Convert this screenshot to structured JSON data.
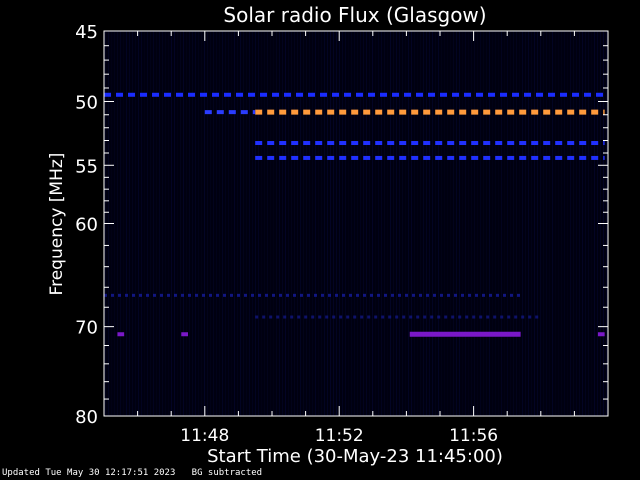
{
  "chart_data": {
    "type": "heatmap",
    "title": "Solar radio Flux (Glasgow)",
    "xlabel": "Start Time (30-May-23 11:45:00)",
    "ylabel": "Frequency [MHz]",
    "x_range_minutes": [
      0,
      15
    ],
    "x_ticks": [
      {
        "minutes": 3,
        "label": "11:48"
      },
      {
        "minutes": 7,
        "label": "11:52"
      },
      {
        "minutes": 11,
        "label": "11:56"
      }
    ],
    "y_range_mhz": [
      45,
      80
    ],
    "y_scale": "log",
    "y_ticks": [
      {
        "mhz": 45,
        "label": "45"
      },
      {
        "mhz": 50,
        "label": "50"
      },
      {
        "mhz": 55,
        "label": "55"
      },
      {
        "mhz": 60,
        "label": "60"
      },
      {
        "mhz": 70,
        "label": "70"
      },
      {
        "mhz": 80,
        "label": "80"
      }
    ],
    "features": [
      {
        "name": "band-50mhz-interference",
        "mhz": 49.5,
        "x_start": 0.0,
        "x_end": 14.9,
        "intensity": "medium",
        "color": "#1a2cff",
        "style": "dashed"
      },
      {
        "name": "band-51mhz-strong",
        "mhz": 50.8,
        "x_start": 4.5,
        "x_end": 14.9,
        "intensity": "high",
        "color": "#ff9a3c",
        "style": "dashed"
      },
      {
        "name": "band-51mhz-early",
        "mhz": 50.8,
        "x_start": 3.0,
        "x_end": 4.5,
        "intensity": "medium",
        "color": "#2a3cff",
        "style": "dashed"
      },
      {
        "name": "band-53mhz",
        "mhz": 53.2,
        "x_start": 4.5,
        "x_end": 14.9,
        "intensity": "medium",
        "color": "#2030ff",
        "style": "dashed"
      },
      {
        "name": "band-54mhz",
        "mhz": 54.4,
        "x_start": 4.5,
        "x_end": 14.9,
        "intensity": "medium",
        "color": "#2030ff",
        "style": "dashed"
      },
      {
        "name": "band-67mhz",
        "mhz": 66.8,
        "x_start": 0.0,
        "x_end": 12.5,
        "intensity": "low",
        "color": "#1820b0",
        "style": "dotted"
      },
      {
        "name": "band-69mhz",
        "mhz": 69.0,
        "x_start": 4.5,
        "x_end": 13.0,
        "intensity": "low",
        "color": "#141a90",
        "style": "dotted"
      },
      {
        "name": "band-70mhz-burst",
        "mhz": 70.8,
        "x_start": 9.1,
        "x_end": 12.4,
        "intensity": "high",
        "color": "#7a18c8",
        "style": "solid"
      },
      {
        "name": "spot-70mhz-a",
        "mhz": 70.8,
        "x_start": 0.4,
        "x_end": 0.6,
        "intensity": "medium",
        "color": "#7a18c8",
        "style": "solid"
      },
      {
        "name": "spot-70mhz-b",
        "mhz": 70.8,
        "x_start": 2.3,
        "x_end": 2.5,
        "intensity": "medium",
        "color": "#7a18c8",
        "style": "solid"
      },
      {
        "name": "spot-70mhz-c",
        "mhz": 70.8,
        "x_start": 14.7,
        "x_end": 14.9,
        "intensity": "medium",
        "color": "#7a18c8",
        "style": "solid"
      }
    ],
    "colors": {
      "background": "#000000",
      "plot_background": "#000010",
      "axis": "#ffffff",
      "text": "#ffffff"
    }
  },
  "footer": {
    "updated": "Updated Tue May 30 12:17:51 2023",
    "bg_note": "BG subtracted"
  }
}
